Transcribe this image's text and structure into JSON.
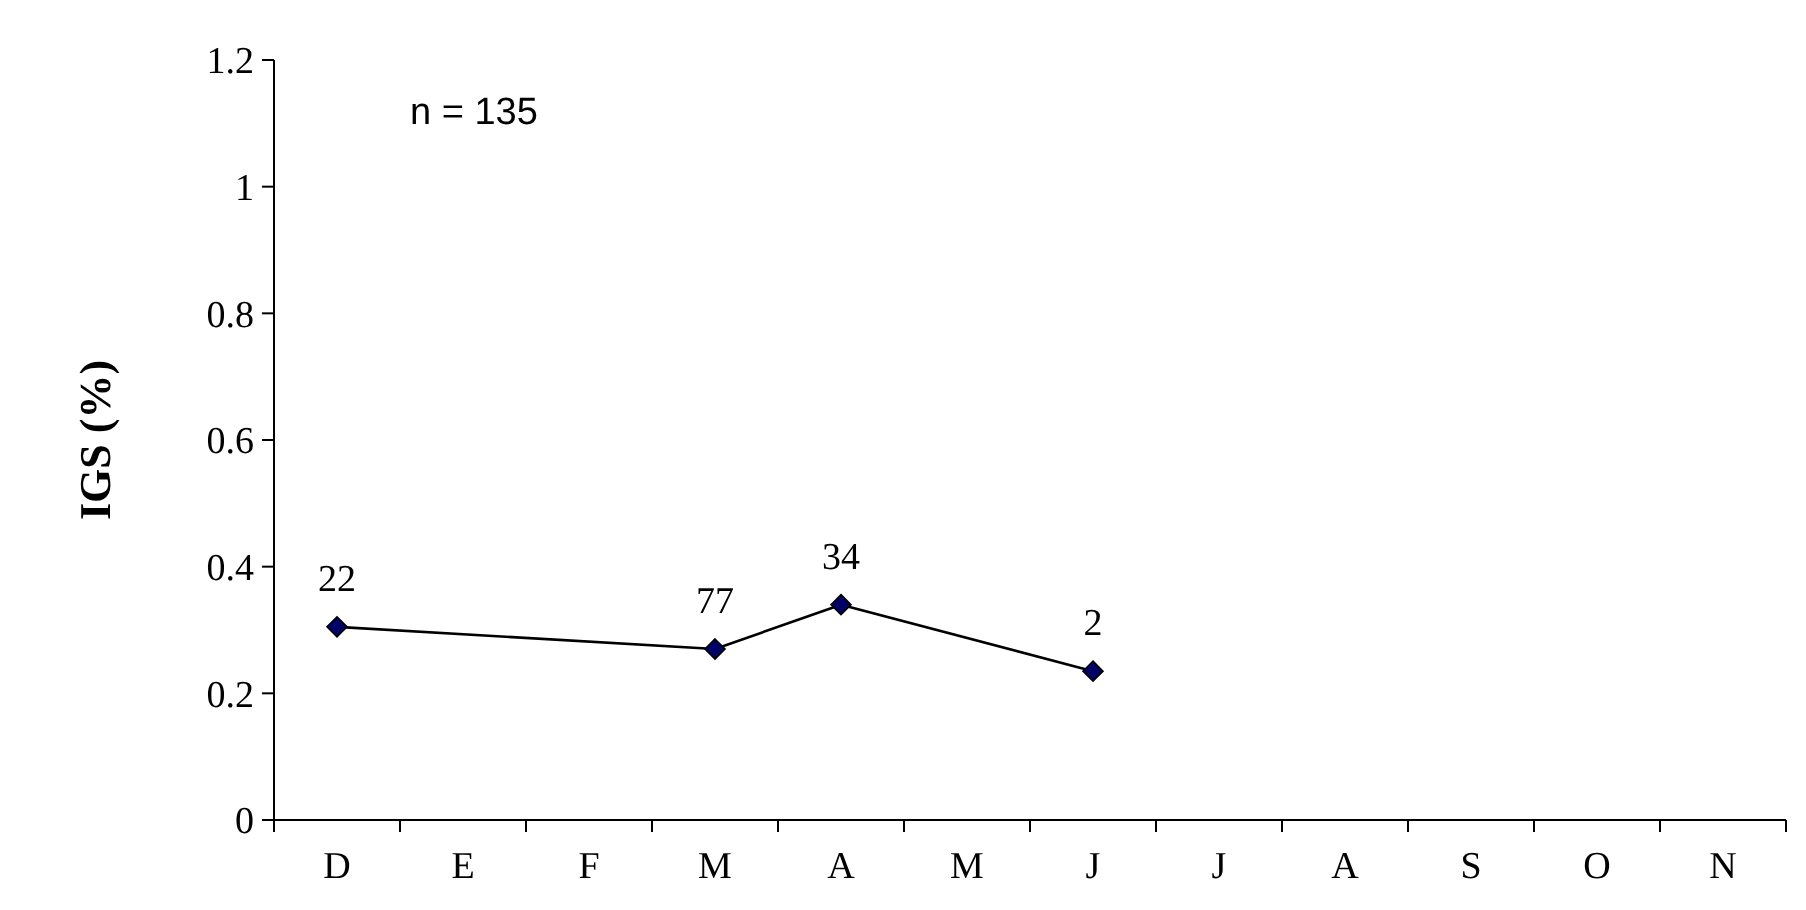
{
  "chart_data": {
    "type": "line",
    "ylabel": "IGS (%)",
    "categories": [
      "D",
      "E",
      "F",
      "M",
      "A",
      "M",
      "J",
      "J",
      "A",
      "S",
      "O",
      "N"
    ],
    "series": [
      {
        "color": "#000000",
        "values": [
          0.305,
          null,
          null,
          0.27,
          0.34,
          null,
          0.235,
          null,
          null,
          null,
          null,
          null
        ]
      }
    ],
    "ylim": [
      0,
      1.2
    ],
    "yticks": [
      0,
      0.2,
      0.4,
      0.6,
      0.8,
      1,
      1.2
    ],
    "marker": "diamond",
    "grid": false,
    "annotations": [
      "n = 135",
      {
        "text": "22",
        "x": "D",
        "y": 0.305
      },
      {
        "text": "77",
        "x": "M",
        "y": 0.27
      },
      {
        "text": "34",
        "x": "A",
        "y": 0.34
      },
      {
        "text": "2",
        "x": "J",
        "y": 0.235
      }
    ]
  }
}
